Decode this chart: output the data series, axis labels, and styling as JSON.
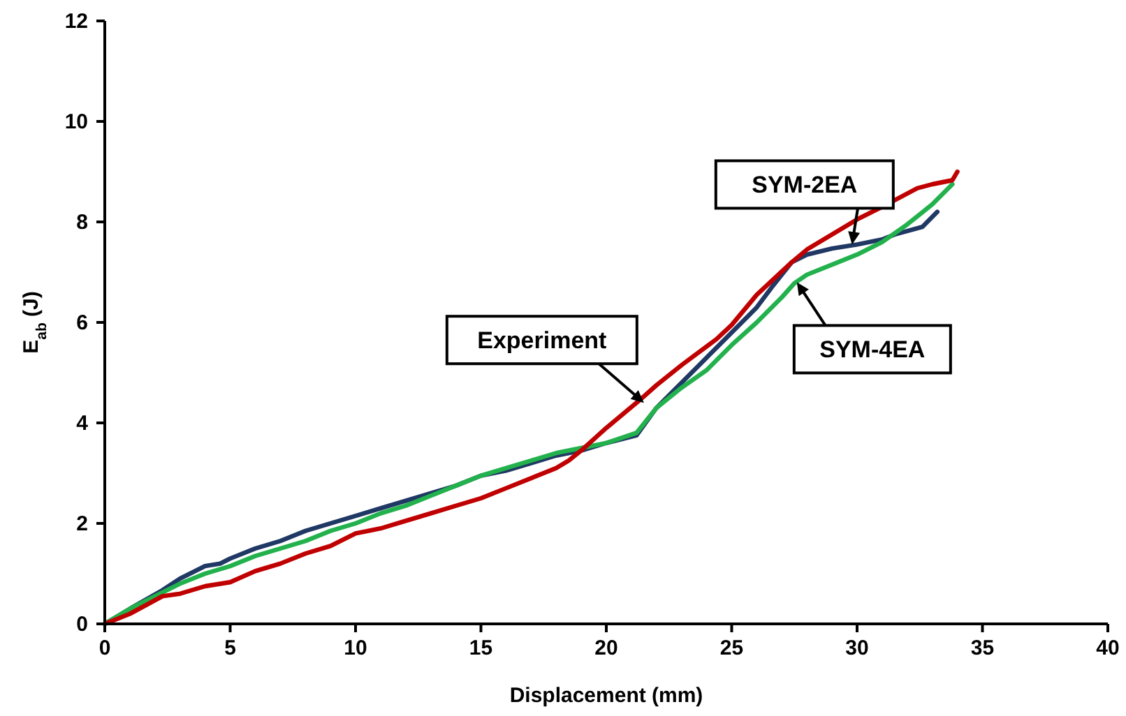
{
  "chart_data": {
    "type": "line",
    "xlabel": "Displacement (mm)",
    "ylabel": "E$_{ab}$ (J)",
    "xlim": [
      0,
      40
    ],
    "xticks": [
      0,
      5,
      10,
      15,
      20,
      25,
      30,
      35,
      40
    ],
    "ylim": [
      0,
      12
    ],
    "yticks": [
      0,
      2,
      4,
      6,
      8,
      10,
      12
    ],
    "grid": false,
    "marker": "none",
    "line_style": "solid",
    "series": [
      {
        "color": "#1f3864",
        "x": [
          0,
          1,
          2.3,
          3,
          4,
          4.6,
          5,
          6,
          7,
          8,
          9,
          10,
          11,
          12,
          13,
          14,
          15,
          16,
          17,
          18,
          19,
          20,
          21.2,
          22,
          23,
          24,
          25,
          26,
          26.6,
          27.4,
          28,
          29,
          30,
          31,
          31.5,
          32.6,
          33.2
        ],
        "values": [
          0,
          0.3,
          0.67,
          0.9,
          1.15,
          1.2,
          1.3,
          1.5,
          1.65,
          1.85,
          2.0,
          2.15,
          2.3,
          2.45,
          2.6,
          2.75,
          2.95,
          3.05,
          3.2,
          3.35,
          3.45,
          3.6,
          3.75,
          4.3,
          4.8,
          5.3,
          5.8,
          6.3,
          6.7,
          7.2,
          7.35,
          7.47,
          7.55,
          7.65,
          7.75,
          7.9,
          8.2
        ]
      },
      {
        "color": "#22b14c",
        "x": [
          0,
          1,
          2,
          3,
          4,
          5,
          6,
          7,
          8,
          9,
          10,
          11,
          12,
          13,
          14,
          15,
          16,
          17,
          18,
          19,
          20,
          21.2,
          22,
          23,
          24,
          25,
          26,
          27,
          27.5,
          28,
          29,
          30,
          31,
          32,
          32.5,
          33,
          33.8
        ],
        "values": [
          0,
          0.3,
          0.55,
          0.8,
          1.0,
          1.15,
          1.35,
          1.5,
          1.65,
          1.85,
          2.0,
          2.2,
          2.35,
          2.55,
          2.75,
          2.95,
          3.1,
          3.25,
          3.4,
          3.5,
          3.6,
          3.8,
          4.3,
          4.7,
          5.05,
          5.55,
          6.0,
          6.5,
          6.78,
          6.95,
          7.15,
          7.35,
          7.6,
          7.95,
          8.15,
          8.35,
          8.75
        ]
      },
      {
        "color": "#c00000",
        "x": [
          0,
          1,
          2.3,
          3,
          4,
          5,
          6,
          7,
          8,
          9,
          10,
          11,
          12,
          13,
          14,
          15,
          16,
          17,
          18,
          18.5,
          19,
          20,
          21.3,
          22,
          23,
          24.4,
          25,
          26,
          27.4,
          28,
          29,
          30,
          31,
          32.4,
          33,
          33.8,
          34
        ],
        "values": [
          0,
          0.2,
          0.55,
          0.6,
          0.75,
          0.83,
          1.05,
          1.2,
          1.4,
          1.55,
          1.8,
          1.9,
          2.05,
          2.2,
          2.35,
          2.5,
          2.7,
          2.9,
          3.1,
          3.25,
          3.45,
          3.9,
          4.44,
          4.75,
          5.15,
          5.67,
          5.95,
          6.55,
          7.2,
          7.45,
          7.75,
          8.05,
          8.3,
          8.67,
          8.75,
          8.83,
          9.0
        ]
      }
    ],
    "annotations": [
      {
        "text": "Experiment",
        "x": 21.5,
        "y": 4.4
      },
      {
        "text": "SYM-2EA",
        "x": 29.8,
        "y": 7.55
      },
      {
        "text": "SYM-4EA",
        "x": 27.6,
        "y": 6.8
      }
    ]
  }
}
